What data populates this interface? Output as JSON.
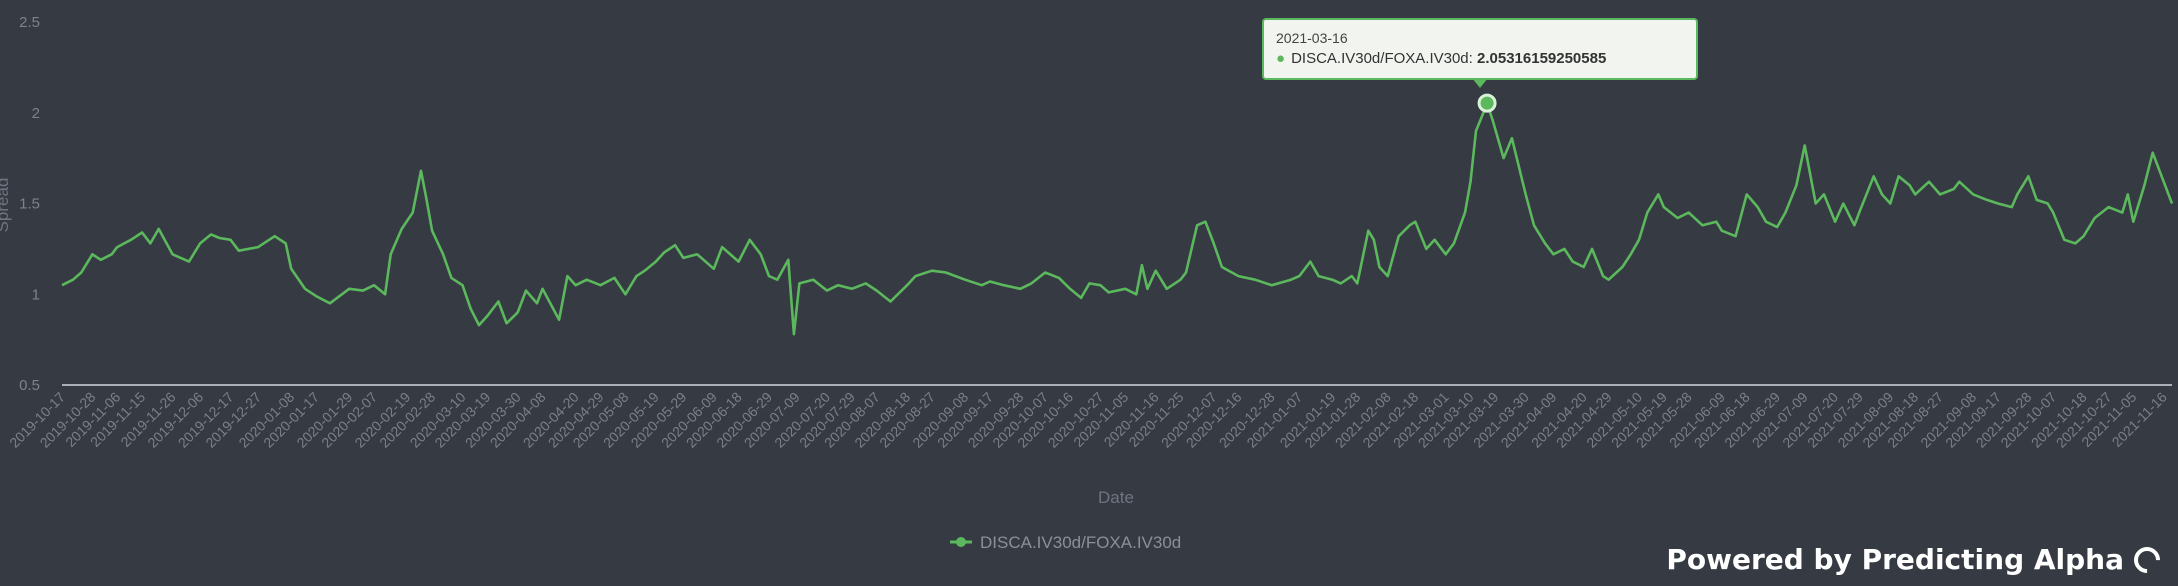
{
  "chart_data": {
    "type": "line",
    "xlabel": "Date",
    "ylabel": "Spread",
    "ylim": [
      0.5,
      2.5
    ],
    "yticks": [
      "0.5",
      "1",
      "1.5",
      "2",
      "2.5"
    ],
    "grid": false,
    "legend": "bottom-center",
    "x_tick_labels": [
      "2019-10-17",
      "2019-10-28",
      "2019-11-06",
      "2019-11-15",
      "2019-11-26",
      "2019-12-06",
      "2019-12-17",
      "2019-12-27",
      "2020-01-08",
      "2020-01-17",
      "2020-01-29",
      "2020-02-07",
      "2020-02-19",
      "2020-02-28",
      "2020-03-10",
      "2020-03-19",
      "2020-03-30",
      "2020-04-08",
      "2020-04-20",
      "2020-04-29",
      "2020-05-08",
      "2020-05-19",
      "2020-05-29",
      "2020-06-09",
      "2020-06-18",
      "2020-06-29",
      "2020-07-09",
      "2020-07-20",
      "2020-07-29",
      "2020-08-07",
      "2020-08-18",
      "2020-08-27",
      "2020-09-08",
      "2020-09-17",
      "2020-09-28",
      "2020-10-07",
      "2020-10-16",
      "2020-10-27",
      "2020-11-05",
      "2020-11-16",
      "2020-11-25",
      "2020-12-07",
      "2020-12-16",
      "2020-12-28",
      "2021-01-07",
      "2021-01-19",
      "2021-01-28",
      "2021-02-08",
      "2021-02-18",
      "2021-03-01",
      "2021-03-10",
      "2021-03-19",
      "2021-03-30",
      "2021-04-09",
      "2021-04-20",
      "2021-04-29",
      "2021-05-10",
      "2021-05-19",
      "2021-05-28",
      "2021-06-09",
      "2021-06-18",
      "2021-06-29",
      "2021-07-09",
      "2021-07-20",
      "2021-07-29",
      "2021-08-09",
      "2021-08-18",
      "2021-08-27",
      "2021-09-08",
      "2021-09-17",
      "2021-09-28",
      "2021-10-07",
      "2021-10-18",
      "2021-10-27",
      "2021-11-05",
      "2021-11-16"
    ],
    "series": [
      {
        "name": "DISCA.IV30d/FOXA.IV30d",
        "color": "#5cb85c",
        "points": [
          [
            "2019-10-17",
            1.05
          ],
          [
            "2019-10-21",
            1.08
          ],
          [
            "2019-10-24",
            1.12
          ],
          [
            "2019-10-28",
            1.22
          ],
          [
            "2019-10-31",
            1.19
          ],
          [
            "2019-11-04",
            1.22
          ],
          [
            "2019-11-06",
            1.26
          ],
          [
            "2019-11-11",
            1.3
          ],
          [
            "2019-11-15",
            1.34
          ],
          [
            "2019-11-18",
            1.28
          ],
          [
            "2019-11-21",
            1.36
          ],
          [
            "2019-11-26",
            1.22
          ],
          [
            "2019-12-02",
            1.18
          ],
          [
            "2019-12-06",
            1.28
          ],
          [
            "2019-12-10",
            1.33
          ],
          [
            "2019-12-13",
            1.31
          ],
          [
            "2019-12-17",
            1.3
          ],
          [
            "2019-12-20",
            1.24
          ],
          [
            "2019-12-27",
            1.26
          ],
          [
            "2020-01-02",
            1.32
          ],
          [
            "2020-01-06",
            1.28
          ],
          [
            "2020-01-08",
            1.14
          ],
          [
            "2020-01-13",
            1.03
          ],
          [
            "2020-01-17",
            0.99
          ],
          [
            "2020-01-22",
            0.95
          ],
          [
            "2020-01-29",
            1.03
          ],
          [
            "2020-02-03",
            1.02
          ],
          [
            "2020-02-07",
            1.05
          ],
          [
            "2020-02-11",
            1.0
          ],
          [
            "2020-02-13",
            1.22
          ],
          [
            "2020-02-17",
            1.36
          ],
          [
            "2020-02-21",
            1.45
          ],
          [
            "2020-02-24",
            1.68
          ],
          [
            "2020-02-26",
            1.52
          ],
          [
            "2020-02-28",
            1.35
          ],
          [
            "2020-03-03",
            1.22
          ],
          [
            "2020-03-06",
            1.09
          ],
          [
            "2020-03-10",
            1.05
          ],
          [
            "2020-03-13",
            0.92
          ],
          [
            "2020-03-16",
            0.83
          ],
          [
            "2020-03-19",
            0.88
          ],
          [
            "2020-03-23",
            0.96
          ],
          [
            "2020-03-26",
            0.84
          ],
          [
            "2020-03-30",
            0.9
          ],
          [
            "2020-04-02",
            1.02
          ],
          [
            "2020-04-06",
            0.95
          ],
          [
            "2020-04-08",
            1.03
          ],
          [
            "2020-04-14",
            0.86
          ],
          [
            "2020-04-17",
            1.1
          ],
          [
            "2020-04-20",
            1.05
          ],
          [
            "2020-04-24",
            1.08
          ],
          [
            "2020-04-29",
            1.05
          ],
          [
            "2020-05-04",
            1.09
          ],
          [
            "2020-05-08",
            1.0
          ],
          [
            "2020-05-12",
            1.1
          ],
          [
            "2020-05-15",
            1.13
          ],
          [
            "2020-05-19",
            1.18
          ],
          [
            "2020-05-22",
            1.23
          ],
          [
            "2020-05-26",
            1.27
          ],
          [
            "2020-05-29",
            1.2
          ],
          [
            "2020-06-03",
            1.22
          ],
          [
            "2020-06-09",
            1.14
          ],
          [
            "2020-06-12",
            1.26
          ],
          [
            "2020-06-18",
            1.18
          ],
          [
            "2020-06-22",
            1.3
          ],
          [
            "2020-06-26",
            1.22
          ],
          [
            "2020-06-29",
            1.1
          ],
          [
            "2020-07-02",
            1.08
          ],
          [
            "2020-07-06",
            1.19
          ],
          [
            "2020-07-08",
            0.78
          ],
          [
            "2020-07-10",
            1.06
          ],
          [
            "2020-07-15",
            1.08
          ],
          [
            "2020-07-20",
            1.02
          ],
          [
            "2020-07-24",
            1.05
          ],
          [
            "2020-07-29",
            1.03
          ],
          [
            "2020-08-03",
            1.06
          ],
          [
            "2020-08-07",
            1.02
          ],
          [
            "2020-08-12",
            0.96
          ],
          [
            "2020-08-18",
            1.05
          ],
          [
            "2020-08-21",
            1.1
          ],
          [
            "2020-08-27",
            1.13
          ],
          [
            "2020-09-01",
            1.12
          ],
          [
            "2020-09-08",
            1.08
          ],
          [
            "2020-09-14",
            1.05
          ],
          [
            "2020-09-17",
            1.07
          ],
          [
            "2020-09-22",
            1.05
          ],
          [
            "2020-09-28",
            1.03
          ],
          [
            "2020-10-02",
            1.06
          ],
          [
            "2020-10-07",
            1.12
          ],
          [
            "2020-10-12",
            1.09
          ],
          [
            "2020-10-16",
            1.03
          ],
          [
            "2020-10-20",
            0.98
          ],
          [
            "2020-10-23",
            1.06
          ],
          [
            "2020-10-27",
            1.05
          ],
          [
            "2020-10-30",
            1.01
          ],
          [
            "2020-11-05",
            1.03
          ],
          [
            "2020-11-09",
            1.0
          ],
          [
            "2020-11-11",
            1.16
          ],
          [
            "2020-11-13",
            1.03
          ],
          [
            "2020-11-16",
            1.13
          ],
          [
            "2020-11-20",
            1.03
          ],
          [
            "2020-11-25",
            1.08
          ],
          [
            "2020-11-27",
            1.12
          ],
          [
            "2020-12-01",
            1.38
          ],
          [
            "2020-12-04",
            1.4
          ],
          [
            "2020-12-07",
            1.28
          ],
          [
            "2020-12-10",
            1.15
          ],
          [
            "2020-12-16",
            1.1
          ],
          [
            "2020-12-22",
            1.08
          ],
          [
            "2020-12-28",
            1.05
          ],
          [
            "2021-01-04",
            1.08
          ],
          [
            "2021-01-07",
            1.1
          ],
          [
            "2021-01-11",
            1.18
          ],
          [
            "2021-01-14",
            1.1
          ],
          [
            "2021-01-19",
            1.08
          ],
          [
            "2021-01-22",
            1.06
          ],
          [
            "2021-01-26",
            1.1
          ],
          [
            "2021-01-28",
            1.06
          ],
          [
            "2021-02-01",
            1.35
          ],
          [
            "2021-02-03",
            1.3
          ],
          [
            "2021-02-05",
            1.15
          ],
          [
            "2021-02-08",
            1.1
          ],
          [
            "2021-02-12",
            1.32
          ],
          [
            "2021-02-16",
            1.38
          ],
          [
            "2021-02-18",
            1.4
          ],
          [
            "2021-02-22",
            1.25
          ],
          [
            "2021-02-25",
            1.3
          ],
          [
            "2021-03-01",
            1.22
          ],
          [
            "2021-03-04",
            1.28
          ],
          [
            "2021-03-08",
            1.45
          ],
          [
            "2021-03-10",
            1.62
          ],
          [
            "2021-03-12",
            1.9
          ],
          [
            "2021-03-16",
            2.05
          ],
          [
            "2021-03-18",
            1.96
          ],
          [
            "2021-03-22",
            1.75
          ],
          [
            "2021-03-25",
            1.86
          ],
          [
            "2021-03-30",
            1.55
          ],
          [
            "2021-04-02",
            1.38
          ],
          [
            "2021-04-06",
            1.28
          ],
          [
            "2021-04-09",
            1.22
          ],
          [
            "2021-04-13",
            1.25
          ],
          [
            "2021-04-16",
            1.18
          ],
          [
            "2021-04-20",
            1.15
          ],
          [
            "2021-04-23",
            1.25
          ],
          [
            "2021-04-27",
            1.1
          ],
          [
            "2021-04-29",
            1.08
          ],
          [
            "2021-05-04",
            1.15
          ],
          [
            "2021-05-07",
            1.22
          ],
          [
            "2021-05-10",
            1.3
          ],
          [
            "2021-05-13",
            1.45
          ],
          [
            "2021-05-17",
            1.55
          ],
          [
            "2021-05-19",
            1.48
          ],
          [
            "2021-05-24",
            1.42
          ],
          [
            "2021-05-28",
            1.45
          ],
          [
            "2021-06-02",
            1.38
          ],
          [
            "2021-06-07",
            1.4
          ],
          [
            "2021-06-09",
            1.35
          ],
          [
            "2021-06-14",
            1.32
          ],
          [
            "2021-06-18",
            1.55
          ],
          [
            "2021-06-22",
            1.48
          ],
          [
            "2021-06-25",
            1.4
          ],
          [
            "2021-06-29",
            1.37
          ],
          [
            "2021-07-02",
            1.45
          ],
          [
            "2021-07-06",
            1.6
          ],
          [
            "2021-07-09",
            1.82
          ],
          [
            "2021-07-13",
            1.5
          ],
          [
            "2021-07-16",
            1.55
          ],
          [
            "2021-07-20",
            1.4
          ],
          [
            "2021-07-23",
            1.5
          ],
          [
            "2021-07-27",
            1.38
          ],
          [
            "2021-07-29",
            1.46
          ],
          [
            "2021-08-03",
            1.65
          ],
          [
            "2021-08-06",
            1.55
          ],
          [
            "2021-08-09",
            1.5
          ],
          [
            "2021-08-12",
            1.65
          ],
          [
            "2021-08-16",
            1.6
          ],
          [
            "2021-08-18",
            1.55
          ],
          [
            "2021-08-23",
            1.62
          ],
          [
            "2021-08-27",
            1.55
          ],
          [
            "2021-09-01",
            1.58
          ],
          [
            "2021-09-03",
            1.62
          ],
          [
            "2021-09-08",
            1.55
          ],
          [
            "2021-09-13",
            1.52
          ],
          [
            "2021-09-17",
            1.5
          ],
          [
            "2021-09-22",
            1.48
          ],
          [
            "2021-09-24",
            1.55
          ],
          [
            "2021-09-28",
            1.65
          ],
          [
            "2021-10-01",
            1.52
          ],
          [
            "2021-10-05",
            1.5
          ],
          [
            "2021-10-07",
            1.45
          ],
          [
            "2021-10-11",
            1.3
          ],
          [
            "2021-10-15",
            1.28
          ],
          [
            "2021-10-18",
            1.32
          ],
          [
            "2021-10-22",
            1.42
          ],
          [
            "2021-10-27",
            1.48
          ],
          [
            "2021-11-01",
            1.45
          ],
          [
            "2021-11-03",
            1.55
          ],
          [
            "2021-11-05",
            1.4
          ],
          [
            "2021-11-09",
            1.6
          ],
          [
            "2021-11-12",
            1.78
          ],
          [
            "2021-11-16",
            1.62
          ],
          [
            "2021-11-19",
            1.5
          ]
        ]
      }
    ],
    "tooltip": {
      "date": "2021-03-16",
      "series": "DISCA.IV30d/FOXA.IV30d",
      "value": "2.05316159250585"
    }
  },
  "branding": {
    "powered_by": "Powered by Predicting Alpha"
  },
  "colors": {
    "background": "#353a43",
    "line": "#5cb85c",
    "axis": "#aab0b8"
  }
}
